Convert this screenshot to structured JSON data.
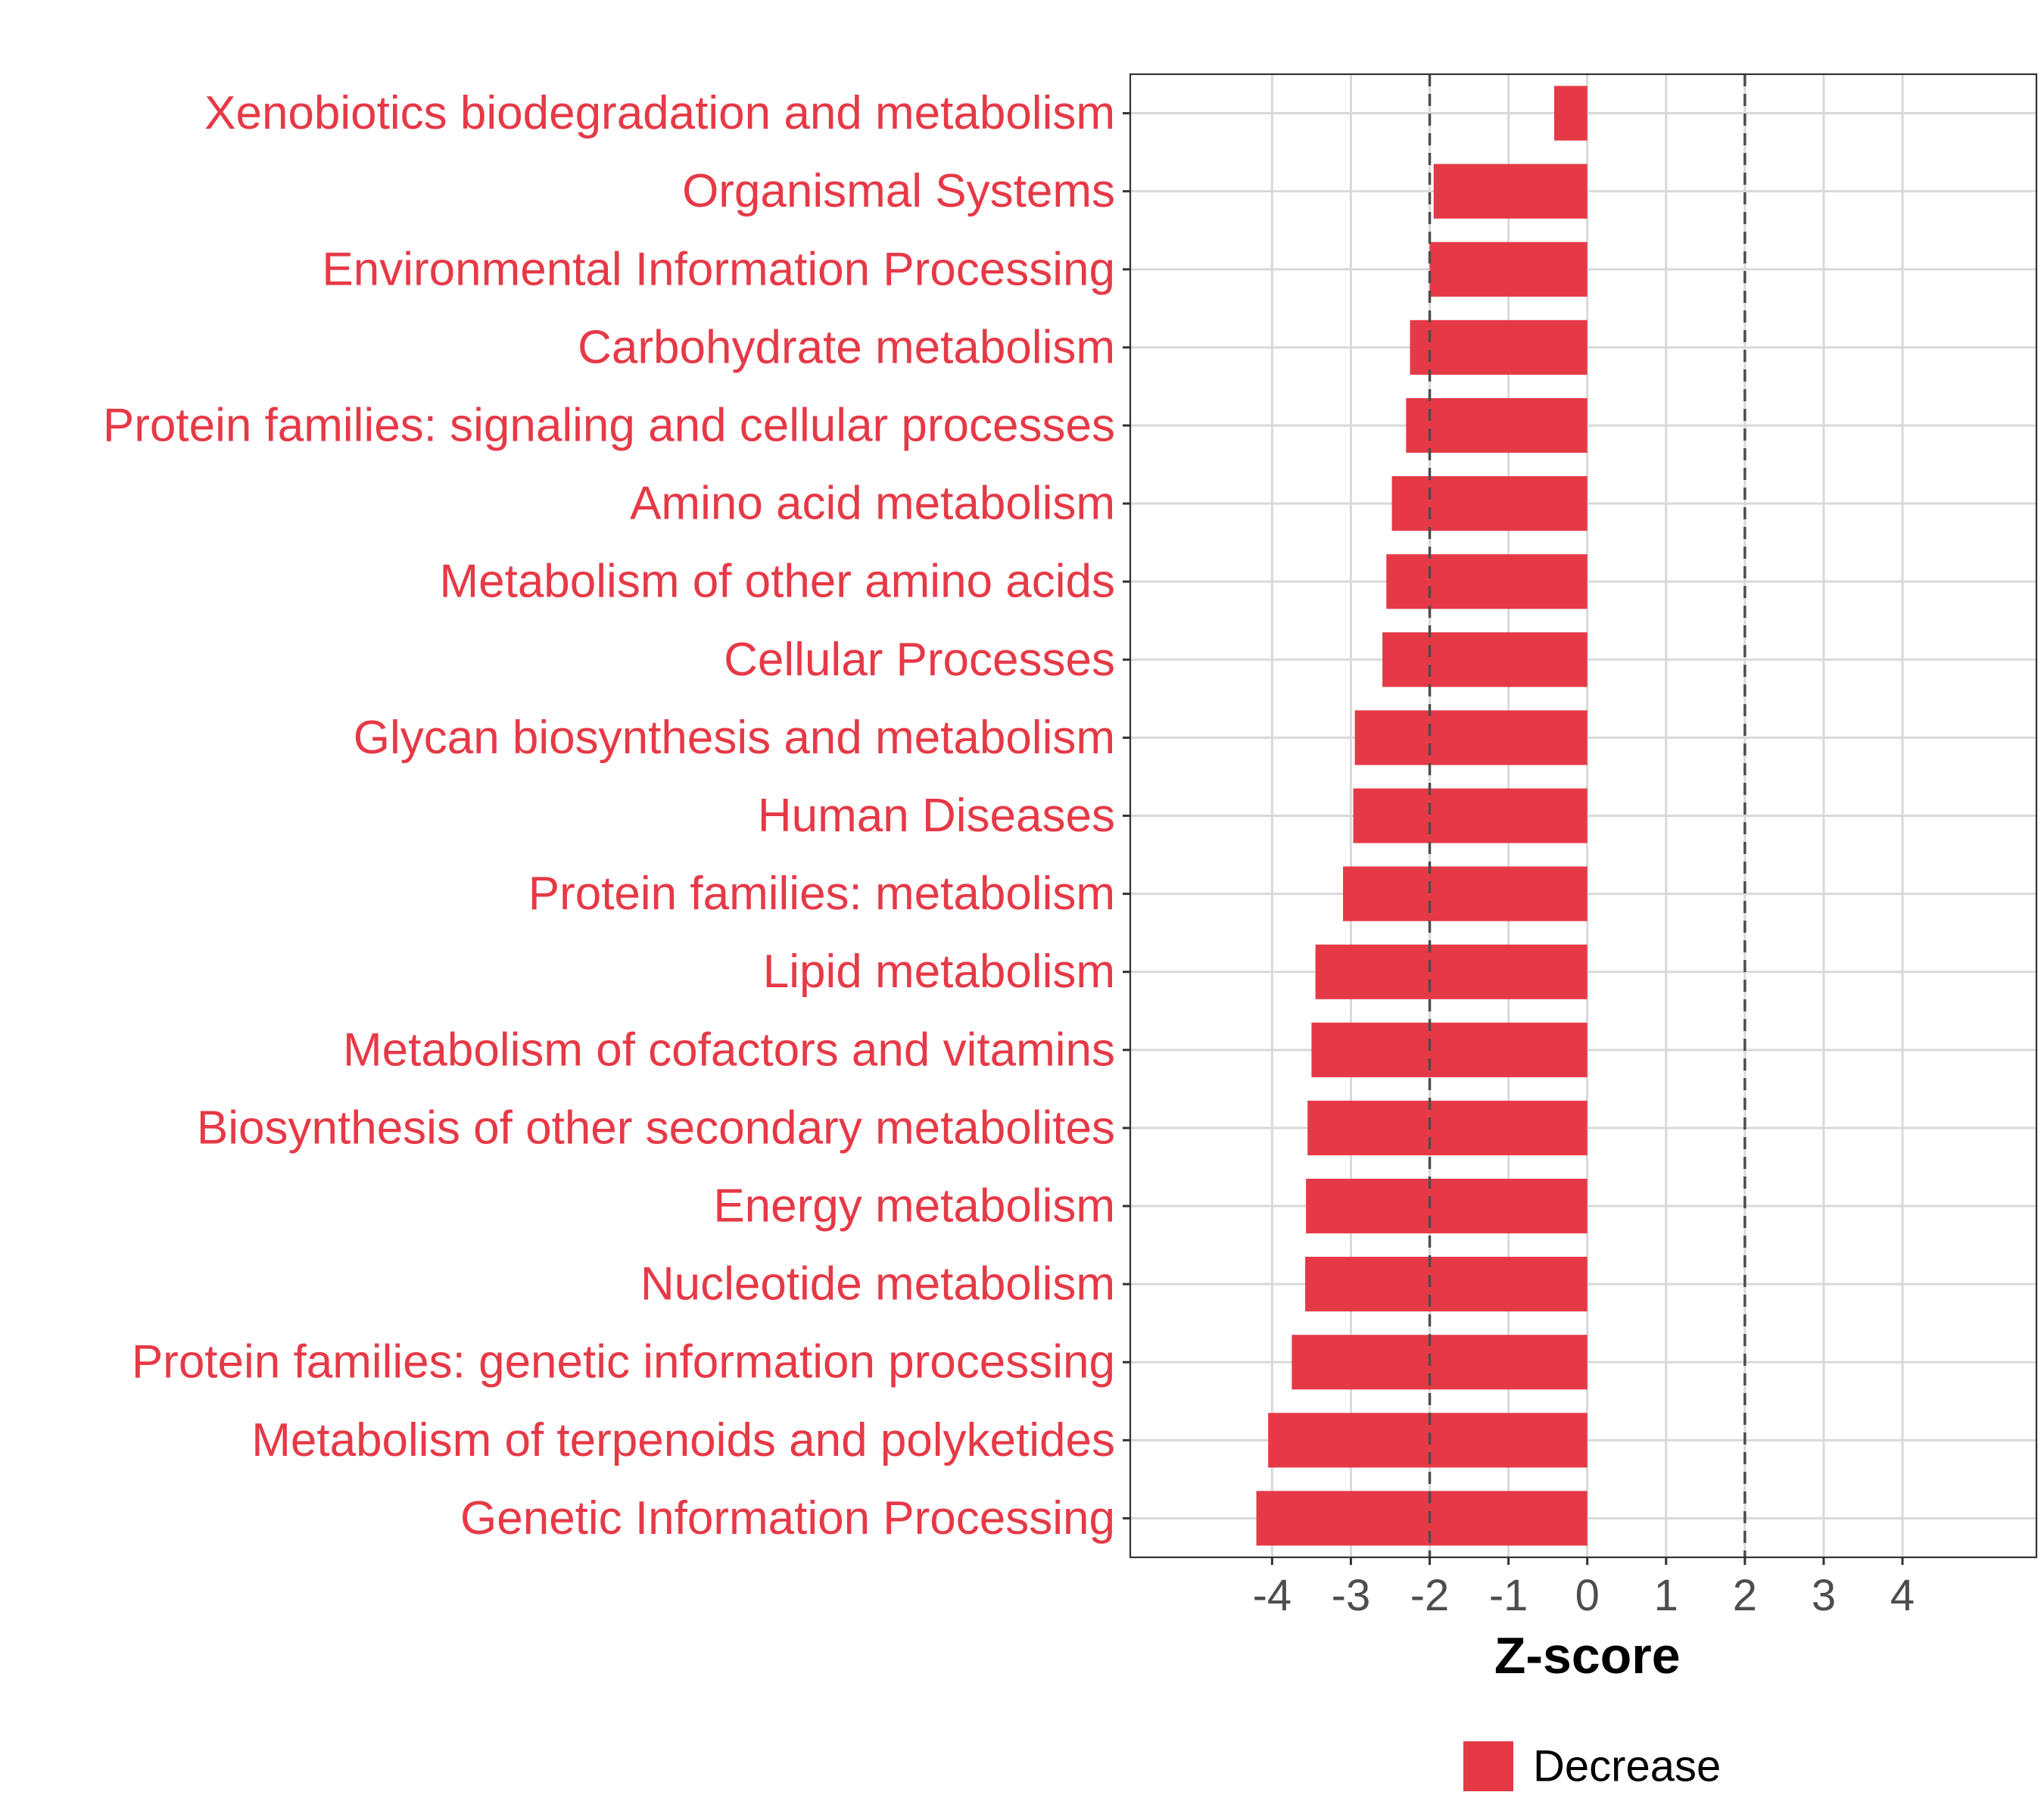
{
  "chart_data": {
    "type": "bar",
    "orientation": "horizontal",
    "xlabel": "Z-score",
    "ylabel": "",
    "xlim": [
      -5.8,
      5.7
    ],
    "x_ticks": [
      -4,
      -3,
      -2,
      -1,
      0,
      1,
      2,
      3,
      4
    ],
    "threshold_lines": [
      -2,
      2
    ],
    "grid": true,
    "categories": [
      "Xenobiotics biodegradation and metabolism",
      "Organismal Systems",
      "Environmental Information Processing",
      "Carbohydrate metabolism",
      "Protein families: signaling and cellular processes",
      "Amino acid metabolism",
      "Metabolism of other amino acids",
      "Cellular Processes",
      "Glycan biosynthesis and metabolism",
      "Human Diseases",
      "Protein families: metabolism",
      "Lipid metabolism",
      "Metabolism of cofactors and vitamins",
      "Biosynthesis of other secondary metabolites",
      "Energy metabolism",
      "Nucleotide metabolism",
      "Protein families: genetic information processing",
      "Metabolism of terpenoids and polyketides",
      "Genetic Information Processing"
    ],
    "series": [
      {
        "name": "Decrease",
        "color": "#e63946",
        "values": [
          -0.42,
          -1.95,
          -2.0,
          -2.25,
          -2.3,
          -2.48,
          -2.55,
          -2.6,
          -2.95,
          -2.97,
          -3.1,
          -3.45,
          -3.5,
          -3.55,
          -3.57,
          -3.58,
          -3.75,
          -4.05,
          -4.2
        ]
      }
    ],
    "legend": {
      "position": "bottom",
      "entries": [
        "Decrease"
      ]
    }
  }
}
